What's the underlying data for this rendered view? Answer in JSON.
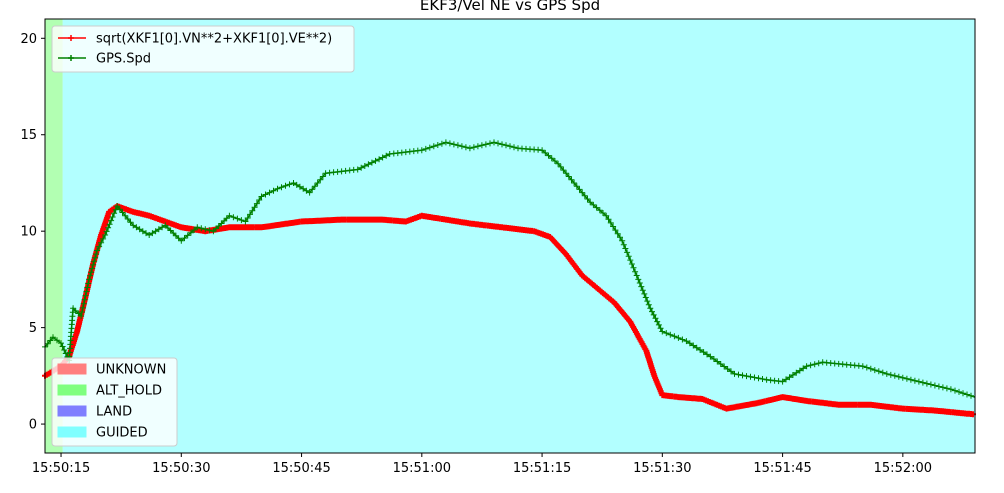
{
  "chart_data": {
    "type": "line",
    "title": "EKF3/Vel NE vs GPS Spd",
    "xlabel": "",
    "ylabel": "",
    "x_unit": "time (HH:MM:SS)",
    "xlim": [
      "15:50:13",
      "15:52:09"
    ],
    "ylim": [
      -1.5,
      21
    ],
    "x_ticks": [
      "15:50:15",
      "15:50:30",
      "15:50:45",
      "15:51:00",
      "15:51:15",
      "15:51:30",
      "15:51:45",
      "15:52:00"
    ],
    "y_ticks": [
      0,
      5,
      10,
      15,
      20
    ],
    "grid": false,
    "legend_position": "top-left",
    "series": [
      {
        "name": "sqrt(XKF1[0].VN**2+XKF1[0].VE**2)",
        "color": "#ff0000",
        "marker": "+",
        "points": [
          [
            "15:50:13",
            2.5
          ],
          [
            "15:50:15",
            3.0
          ],
          [
            "15:50:16",
            3.5
          ],
          [
            "15:50:17",
            4.8
          ],
          [
            "15:50:18",
            6.5
          ],
          [
            "15:50:19",
            8.3
          ],
          [
            "15:50:20",
            9.8
          ],
          [
            "15:50:21",
            11.0
          ],
          [
            "15:50:22",
            11.3
          ],
          [
            "15:50:24",
            11.0
          ],
          [
            "15:50:26",
            10.8
          ],
          [
            "15:50:28",
            10.5
          ],
          [
            "15:50:30",
            10.2
          ],
          [
            "15:50:33",
            10.0
          ],
          [
            "15:50:36",
            10.2
          ],
          [
            "15:50:40",
            10.2
          ],
          [
            "15:50:45",
            10.5
          ],
          [
            "15:50:50",
            10.6
          ],
          [
            "15:50:55",
            10.6
          ],
          [
            "15:50:58",
            10.5
          ],
          [
            "15:51:00",
            10.8
          ],
          [
            "15:51:03",
            10.6
          ],
          [
            "15:51:06",
            10.4
          ],
          [
            "15:51:10",
            10.2
          ],
          [
            "15:51:14",
            10.0
          ],
          [
            "15:51:16",
            9.7
          ],
          [
            "15:51:18",
            8.8
          ],
          [
            "15:51:20",
            7.7
          ],
          [
            "15:51:22",
            7.0
          ],
          [
            "15:51:24",
            6.3
          ],
          [
            "15:51:26",
            5.3
          ],
          [
            "15:51:28",
            3.8
          ],
          [
            "15:51:29",
            2.5
          ],
          [
            "15:51:30",
            1.5
          ],
          [
            "15:51:32",
            1.4
          ],
          [
            "15:51:35",
            1.3
          ],
          [
            "15:51:38",
            0.8
          ],
          [
            "15:51:42",
            1.1
          ],
          [
            "15:51:45",
            1.4
          ],
          [
            "15:51:48",
            1.2
          ],
          [
            "15:51:52",
            1.0
          ],
          [
            "15:51:56",
            1.0
          ],
          [
            "15:52:00",
            0.8
          ],
          [
            "15:52:04",
            0.7
          ],
          [
            "15:52:09",
            0.5
          ]
        ]
      },
      {
        "name": "GPS.Spd",
        "color": "#008000",
        "marker": "+",
        "points": [
          [
            "15:50:13",
            4.0
          ],
          [
            "15:50:14",
            4.5
          ],
          [
            "15:50:15",
            4.2
          ],
          [
            "15:50:16",
            3.3
          ],
          [
            "15:50:16.5",
            6.0
          ],
          [
            "15:50:17.5",
            5.6
          ],
          [
            "15:50:18.5",
            7.5
          ],
          [
            "15:50:19.5",
            9.0
          ],
          [
            "15:50:20.5",
            9.8
          ],
          [
            "15:50:22",
            11.3
          ],
          [
            "15:50:24",
            10.3
          ],
          [
            "15:50:26",
            9.8
          ],
          [
            "15:50:28",
            10.3
          ],
          [
            "15:50:30",
            9.5
          ],
          [
            "15:50:32",
            10.2
          ],
          [
            "15:50:34",
            10.0
          ],
          [
            "15:50:36",
            10.8
          ],
          [
            "15:50:38",
            10.5
          ],
          [
            "15:50:40",
            11.8
          ],
          [
            "15:50:42",
            12.2
          ],
          [
            "15:50:44",
            12.5
          ],
          [
            "15:50:46",
            12.0
          ],
          [
            "15:50:48",
            13.0
          ],
          [
            "15:50:52",
            13.2
          ],
          [
            "15:50:56",
            14.0
          ],
          [
            "15:51:00",
            14.2
          ],
          [
            "15:51:03",
            14.6
          ],
          [
            "15:51:06",
            14.3
          ],
          [
            "15:51:09",
            14.6
          ],
          [
            "15:51:12",
            14.3
          ],
          [
            "15:51:15",
            14.2
          ],
          [
            "15:51:17",
            13.5
          ],
          [
            "15:51:19",
            12.5
          ],
          [
            "15:51:21",
            11.5
          ],
          [
            "15:51:23",
            10.8
          ],
          [
            "15:51:25",
            9.5
          ],
          [
            "15:51:27",
            7.5
          ],
          [
            "15:51:28.5",
            6.0
          ],
          [
            "15:51:30",
            4.8
          ],
          [
            "15:51:33",
            4.3
          ],
          [
            "15:51:36",
            3.5
          ],
          [
            "15:51:39",
            2.6
          ],
          [
            "15:51:43",
            2.3
          ],
          [
            "15:51:45",
            2.2
          ],
          [
            "15:51:48",
            3.0
          ],
          [
            "15:51:50",
            3.2
          ],
          [
            "15:51:55",
            3.0
          ],
          [
            "15:51:58",
            2.6
          ],
          [
            "15:52:02",
            2.2
          ],
          [
            "15:52:06",
            1.8
          ],
          [
            "15:52:09",
            1.4
          ]
        ]
      }
    ],
    "mode_bands": [
      {
        "mode": "ALT_HOLD",
        "start": "15:50:13",
        "end": "15:50:15.2",
        "color": "#7fff7f"
      },
      {
        "mode": "GUIDED",
        "start": "15:50:15.2",
        "end": "15:52:09",
        "color": "#7fffff"
      }
    ],
    "mode_legend": {
      "position": "bottom-left",
      "entries": [
        {
          "label": "UNKNOWN",
          "color": "#ff7f7f"
        },
        {
          "label": "ALT_HOLD",
          "color": "#7fff7f"
        },
        {
          "label": "LAND",
          "color": "#7f7fff"
        },
        {
          "label": "GUIDED",
          "color": "#7fffff"
        }
      ]
    }
  }
}
